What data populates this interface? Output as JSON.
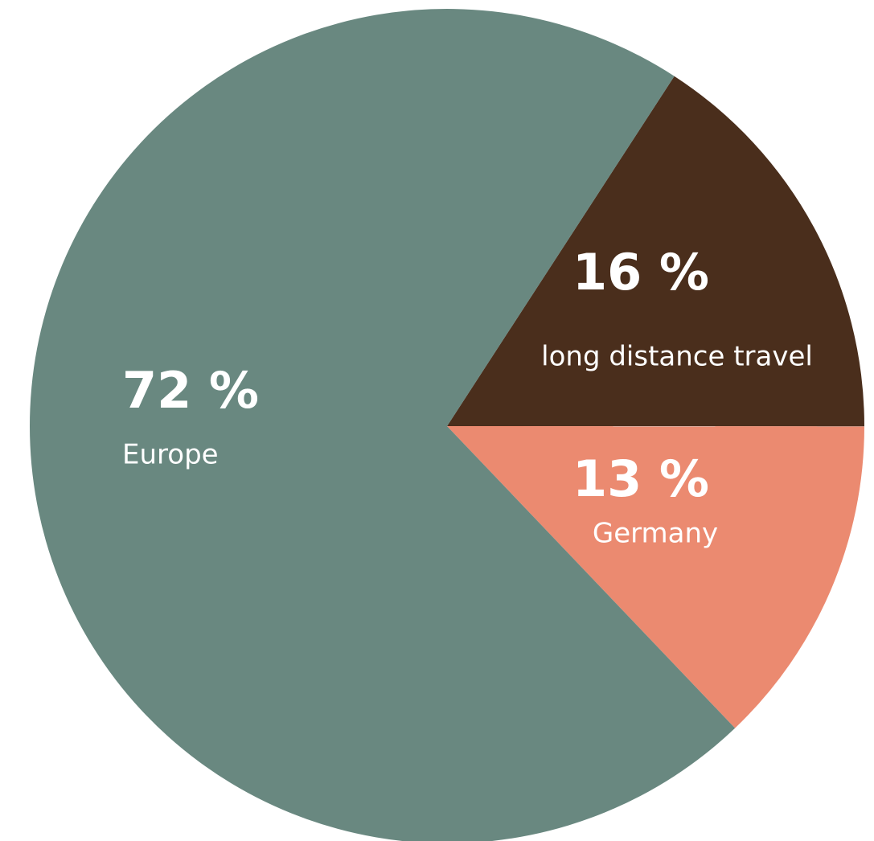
{
  "chart_data": {
    "type": "pie",
    "categories": [
      "long distance travel",
      "Germany",
      "Europe"
    ],
    "values": [
      16,
      13,
      72
    ],
    "value_labels": [
      "16 %",
      "13 %",
      "72 %"
    ],
    "colors": [
      "#4a2e1c",
      "#eb8a70",
      "#698880"
    ]
  }
}
